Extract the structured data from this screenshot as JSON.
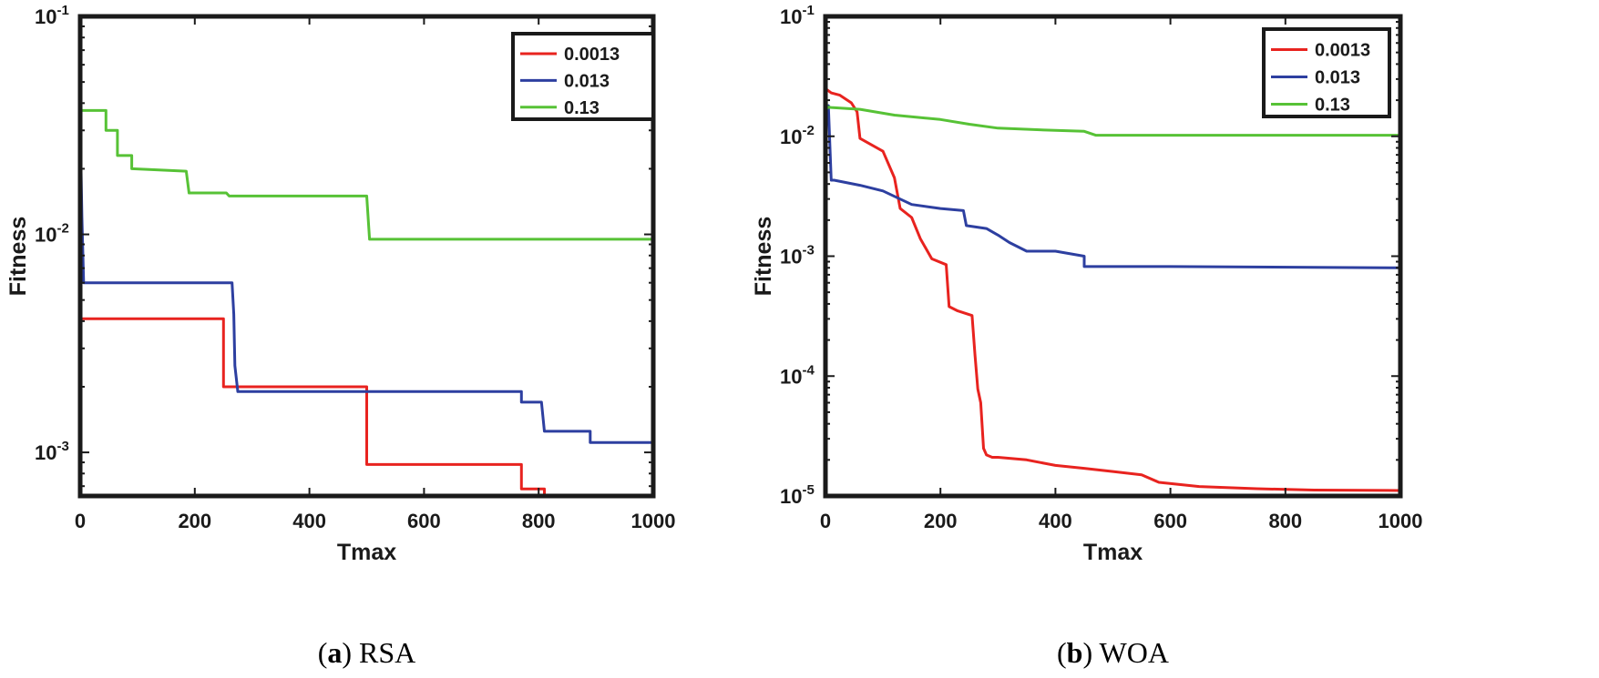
{
  "chart_data": [
    {
      "type": "line",
      "yscale": "log",
      "caption_letter": "a",
      "caption_name": "RSA",
      "xlabel": "Tmax",
      "ylabel": "Fitness",
      "xlim": [
        0,
        1000
      ],
      "ylim_exp": [
        -3.2,
        -1
      ],
      "xticks": [
        0,
        200,
        400,
        600,
        800,
        1000
      ],
      "yticks": [
        -3,
        -2,
        -1
      ],
      "legend_position": "top-right",
      "series": [
        {
          "name": "0.0013",
          "color": "#e8231f",
          "x": [
            0,
            250,
            250,
            500,
            500,
            770,
            770,
            810,
            810,
            1000
          ],
          "y": [
            0.0041,
            0.0041,
            0.002,
            0.002,
            0.00088,
            0.00088,
            0.00068,
            0.00068,
            0.00063,
            0.00063
          ]
        },
        {
          "name": "0.013",
          "color": "#2d3fa0",
          "x": [
            0,
            3,
            6,
            265,
            268,
            270,
            275,
            770,
            770,
            805,
            810,
            890,
            890,
            1000
          ],
          "y": [
            0.033,
            0.012,
            0.006,
            0.006,
            0.0043,
            0.0025,
            0.0019,
            0.0019,
            0.0017,
            0.0017,
            0.00125,
            0.00125,
            0.00111,
            0.00111
          ]
        },
        {
          "name": "0.13",
          "color": "#57c236",
          "x": [
            0,
            45,
            45,
            65,
            65,
            90,
            90,
            185,
            190,
            255,
            260,
            500,
            505,
            1000
          ],
          "y": [
            0.037,
            0.037,
            0.03,
            0.03,
            0.023,
            0.023,
            0.02,
            0.0195,
            0.0155,
            0.0155,
            0.015,
            0.015,
            0.0095,
            0.0095
          ]
        }
      ]
    },
    {
      "type": "line",
      "yscale": "log",
      "caption_letter": "b",
      "caption_name": "WOA",
      "xlabel": "Tmax",
      "ylabel": "Fitness",
      "xlim": [
        0,
        1000
      ],
      "ylim_exp": [
        -5,
        -1
      ],
      "xticks": [
        0,
        200,
        400,
        600,
        800,
        1000
      ],
      "yticks": [
        -5,
        -4,
        -3,
        -2,
        -1
      ],
      "legend_position": "top-right",
      "series": [
        {
          "name": "0.0013",
          "color": "#e8231f",
          "x": [
            0,
            10,
            25,
            45,
            55,
            60,
            100,
            120,
            130,
            150,
            165,
            185,
            210,
            215,
            230,
            255,
            260,
            265,
            270,
            275,
            280,
            290,
            300,
            350,
            400,
            450,
            500,
            550,
            580,
            650,
            750,
            850,
            1000
          ],
          "y": [
            0.025,
            0.023,
            0.022,
            0.019,
            0.016,
            0.0096,
            0.0075,
            0.0045,
            0.0025,
            0.0021,
            0.0014,
            0.00095,
            0.00085,
            0.00038,
            0.00035,
            0.00032,
            0.00015,
            7.8e-05,
            6e-05,
            2.5e-05,
            2.2e-05,
            2.1e-05,
            2.1e-05,
            2e-05,
            1.8e-05,
            1.7e-05,
            1.6e-05,
            1.5e-05,
            1.3e-05,
            1.2e-05,
            1.15e-05,
            1.12e-05,
            1.11e-05
          ]
        },
        {
          "name": "0.013",
          "color": "#2d3fa0",
          "x": [
            0,
            5,
            10,
            15,
            60,
            100,
            150,
            200,
            240,
            245,
            280,
            300,
            320,
            350,
            400,
            450,
            450,
            600,
            1000
          ],
          "y": [
            0.018,
            0.018,
            0.0043,
            0.0043,
            0.0039,
            0.0035,
            0.0027,
            0.0025,
            0.0024,
            0.0018,
            0.0017,
            0.0015,
            0.0013,
            0.0011,
            0.0011,
            0.001,
            0.00082,
            0.00082,
            0.0008
          ]
        },
        {
          "name": "0.13",
          "color": "#57c236",
          "x": [
            0,
            2,
            5,
            10,
            60,
            120,
            200,
            250,
            300,
            400,
            450,
            470,
            600,
            800,
            1000
          ],
          "y": [
            0.044,
            0.017,
            0.0175,
            0.0174,
            0.0168,
            0.015,
            0.0138,
            0.0126,
            0.0117,
            0.0112,
            0.011,
            0.0102,
            0.0102,
            0.0102,
            0.0102
          ]
        }
      ]
    }
  ]
}
